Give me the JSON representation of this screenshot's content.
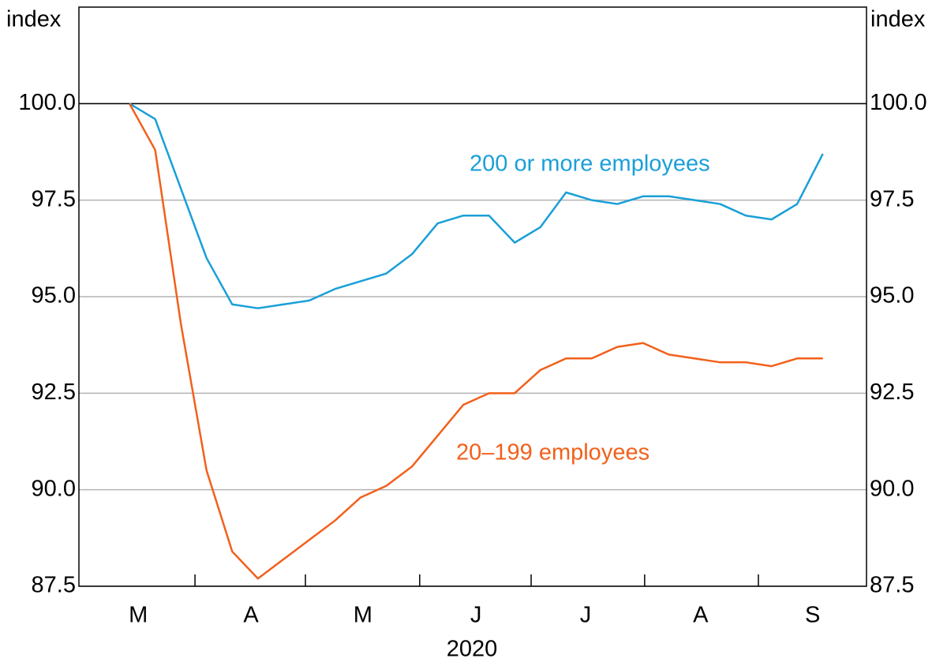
{
  "chart_data": {
    "type": "line",
    "y_label": "index",
    "y2_label": "index",
    "x_label": "2020",
    "categories": [
      null,
      null,
      null,
      null,
      null,
      null,
      null,
      null,
      null,
      null,
      null,
      null,
      null,
      null,
      null,
      null,
      null,
      null,
      null,
      null,
      null,
      null,
      null,
      null,
      null,
      null,
      null,
      null
    ],
    "xlim": [
      -1.97,
      28.7
    ],
    "xticks": [
      {
        "value": 0.34,
        "label": "M"
      },
      {
        "value": 4.73,
        "label": "A"
      },
      {
        "value": 9.09,
        "label": "M"
      },
      {
        "value": 13.49,
        "label": "J"
      },
      {
        "value": 17.76,
        "label": "J"
      },
      {
        "value": 22.24,
        "label": "A"
      },
      {
        "value": 26.6,
        "label": "S"
      }
    ],
    "xseparators": [
      2.55,
      6.85,
      11.3,
      15.64,
      20.06,
      24.49
    ],
    "ylim": [
      87.5,
      102.5
    ],
    "yticks": [
      87.5,
      {
        "value": 90,
        "label": "90.0"
      },
      92.5,
      {
        "value": 95,
        "label": "95.0"
      },
      97.5,
      {
        "value": 100,
        "label": "100.0"
      }
    ],
    "y2lim": [
      87.5,
      102.5
    ],
    "y2ticks": [
      87.5,
      {
        "value": 90,
        "label": "90.0"
      },
      92.5,
      {
        "value": 95,
        "label": "95.0"
      },
      97.5,
      {
        "value": 100,
        "label": "100.0"
      }
    ],
    "hline": 100,
    "grid": true,
    "series": [
      {
        "name": "200 or more employees",
        "color": "#1a9fd8",
        "values": [
          100,
          99.6,
          97.8,
          96.0,
          94.8,
          94.7,
          94.8,
          94.9,
          95.2,
          95.4,
          95.6,
          96.1,
          96.9,
          97.1,
          97.1,
          96.4,
          96.8,
          97.7,
          97.5,
          97.4,
          97.6,
          97.6,
          97.5,
          97.4,
          97.1,
          97.0,
          97.4,
          98.7
        ]
      },
      {
        "name": "20–199 employees",
        "color": "#f2601b",
        "values": [
          100,
          98.8,
          94.3,
          90.5,
          88.4,
          87.7,
          88.2,
          88.7,
          89.2,
          89.8,
          90.1,
          90.6,
          91.4,
          92.2,
          92.5,
          92.5,
          93.1,
          93.4,
          93.4,
          93.7,
          93.8,
          93.5,
          93.4,
          93.3,
          93.3,
          93.2,
          93.4,
          93.4
        ]
      }
    ]
  }
}
